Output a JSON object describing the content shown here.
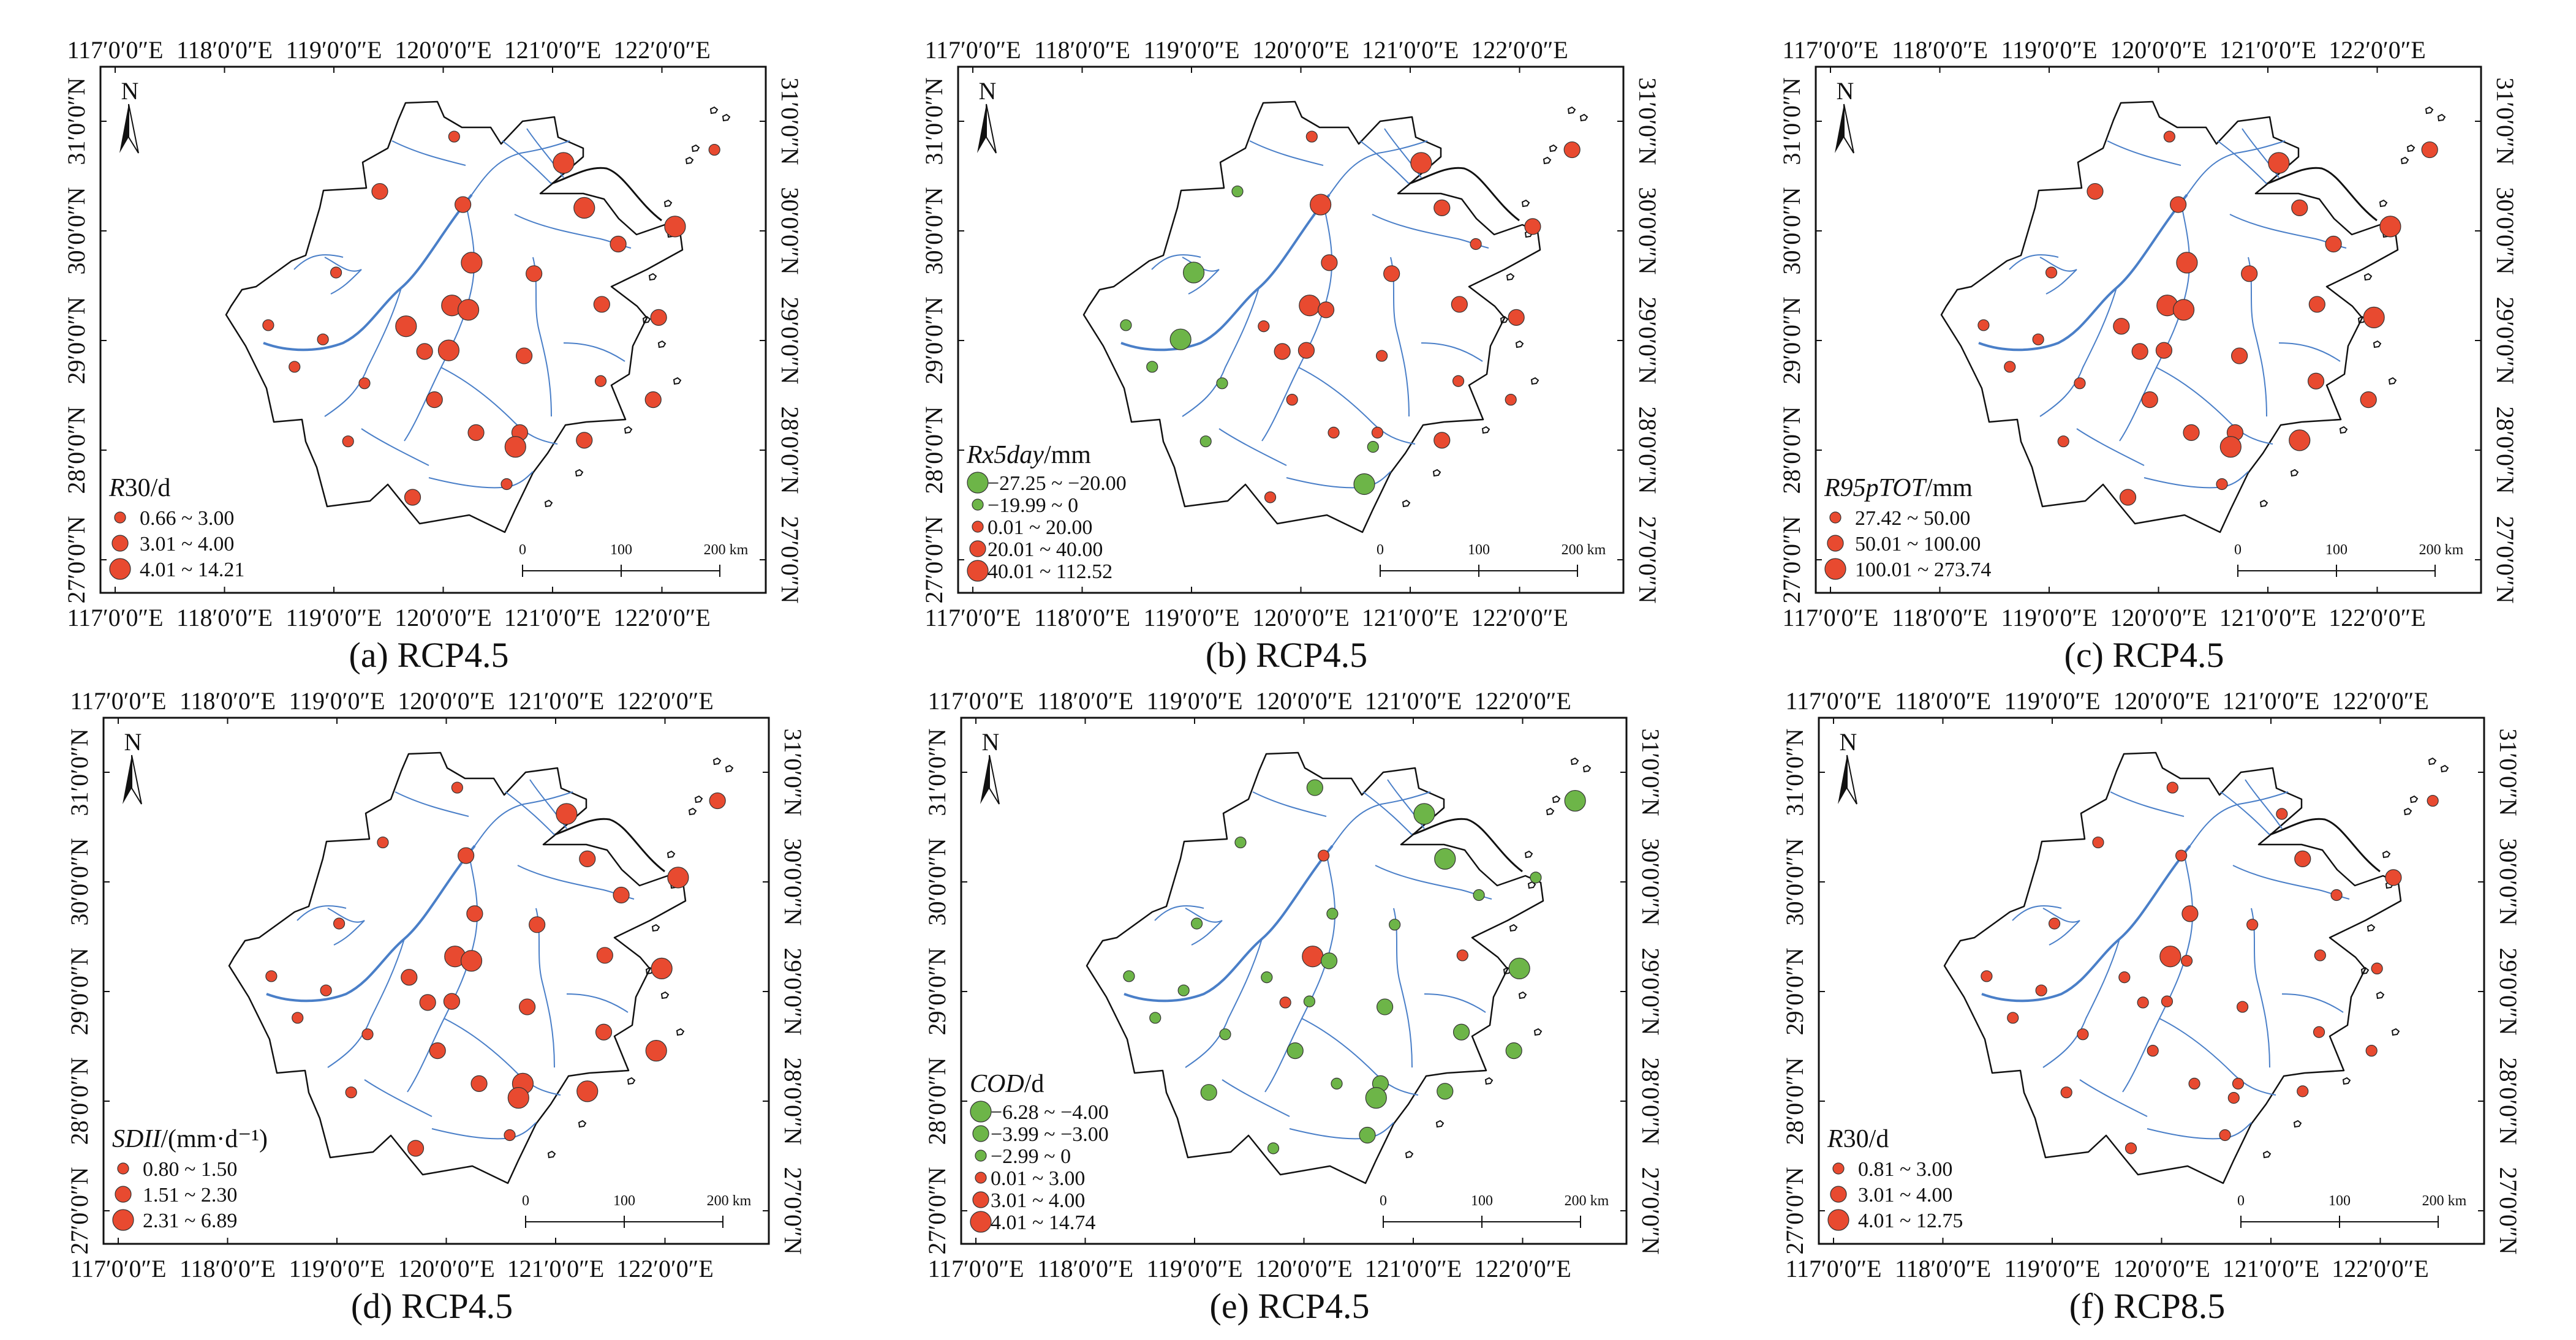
{
  "figure": {
    "axis_labels": {
      "lon_ticks": [
        "117′0′0″E",
        "118′0′0″E",
        "119′0′0″E",
        "120′0′0″E",
        "121′0′0″E",
        "122′0′0″E"
      ],
      "lat_ticks": [
        "31′0′0″N",
        "30′0′0″N",
        "29′0′0″N",
        "28′0′0″N",
        "27′0′0″N"
      ]
    },
    "north_label": "N",
    "scale_bar": {
      "labels": [
        "0",
        "100",
        "200 km"
      ]
    },
    "colors": {
      "red": "#e84a30",
      "green": "#6db548",
      "river": "#4a7fc8",
      "border": "#111111"
    }
  },
  "chart_data": [
    {
      "type": "scatter-map",
      "id": "a",
      "caption": "(a) RCP4.5",
      "legend_title": "R30/d",
      "legend_title_italic": "R",
      "legend_title_rest": "30/d",
      "classes": [
        {
          "label": "0.66 ~ 3.00",
          "color": "red",
          "size": "small"
        },
        {
          "label": "3.01 ~ 4.00",
          "color": "red",
          "size": "medium"
        },
        {
          "label": "4.01 ~ 14.21",
          "color": "red",
          "size": "large"
        }
      ],
      "station_class": [
        0,
        0,
        2,
        1,
        1,
        2,
        2,
        1,
        2,
        0,
        1,
        2,
        2,
        1,
        1,
        0,
        2,
        0,
        1,
        2,
        1,
        0,
        0,
        0,
        1,
        1,
        1,
        1,
        0,
        1,
        2,
        0,
        1
      ]
    },
    {
      "type": "scatter-map",
      "id": "b",
      "caption": "(b) RCP4.5",
      "legend_title": "Rx5day/mm",
      "legend_title_italic": "Rx5day",
      "legend_title_rest": "/mm",
      "classes": [
        {
          "label": "−27.25 ~ −20.00",
          "color": "green",
          "size": "large"
        },
        {
          "label": "−19.99 ~ 0",
          "color": "green",
          "size": "small"
        },
        {
          "label": "0.01 ~ 20.00",
          "color": "red",
          "size": "small"
        },
        {
          "label": "20.01 ~ 40.00",
          "color": "red",
          "size": "medium"
        },
        {
          "label": "40.01 ~ 112.52",
          "color": "red",
          "size": "large"
        }
      ],
      "station_class": [
        2,
        3,
        4,
        1,
        4,
        3,
        3,
        2,
        3,
        0,
        3,
        4,
        3,
        3,
        3,
        1,
        2,
        0,
        3,
        3,
        2,
        1,
        1,
        2,
        2,
        2,
        2,
        2,
        1,
        3,
        1,
        0,
        2
      ]
    },
    {
      "type": "scatter-map",
      "id": "c",
      "caption": "(c) RCP4.5",
      "legend_title": "R95pTOT/mm",
      "legend_title_italic": "R95pTOT",
      "legend_title_rest": "/mm",
      "classes": [
        {
          "label": "27.42 ~ 50.00",
          "color": "red",
          "size": "small"
        },
        {
          "label": "50.01 ~ 100.00",
          "color": "red",
          "size": "medium"
        },
        {
          "label": "100.01 ~ 273.74",
          "color": "red",
          "size": "large"
        }
      ],
      "station_class": [
        0,
        1,
        2,
        1,
        1,
        1,
        2,
        1,
        2,
        0,
        1,
        2,
        2,
        1,
        2,
        0,
        1,
        0,
        1,
        1,
        1,
        0,
        0,
        1,
        1,
        1,
        1,
        1,
        0,
        2,
        2,
        0,
        1
      ]
    },
    {
      "type": "scatter-map",
      "id": "d",
      "caption": "(d) RCP4.5",
      "legend_title": "SDII/(mm·d⁻¹)",
      "legend_title_italic": "SDII",
      "legend_title_rest": "/(mm·d⁻¹)",
      "classes": [
        {
          "label": "0.80 ~ 1.50",
          "color": "red",
          "size": "small"
        },
        {
          "label": "1.51 ~ 2.30",
          "color": "red",
          "size": "medium"
        },
        {
          "label": "2.31 ~ 6.89",
          "color": "red",
          "size": "large"
        }
      ],
      "station_class": [
        0,
        1,
        2,
        0,
        1,
        1,
        2,
        1,
        1,
        0,
        1,
        2,
        2,
        1,
        2,
        0,
        1,
        0,
        1,
        1,
        1,
        0,
        0,
        1,
        2,
        1,
        1,
        2,
        0,
        2,
        2,
        0,
        1
      ]
    },
    {
      "type": "scatter-map",
      "id": "e",
      "caption": "(e) RCP4.5",
      "legend_title": "COD/d",
      "legend_title_italic": "COD",
      "legend_title_rest": "/d",
      "classes": [
        {
          "label": "−6.28 ~ −4.00",
          "color": "green",
          "size": "large"
        },
        {
          "label": "−3.99 ~ −3.00",
          "color": "green",
          "size": "medium"
        },
        {
          "label": "−2.99 ~ 0",
          "color": "green",
          "size": "small"
        },
        {
          "label": "0.01 ~ 3.00",
          "color": "red",
          "size": "small"
        },
        {
          "label": "3.01 ~ 4.00",
          "color": "red",
          "size": "medium"
        },
        {
          "label": "4.01 ~ 14.74",
          "color": "red",
          "size": "large"
        }
      ],
      "station_class": [
        1,
        0,
        0,
        2,
        3,
        0,
        2,
        2,
        2,
        2,
        2,
        5,
        1,
        3,
        0,
        2,
        2,
        2,
        3,
        2,
        1,
        2,
        2,
        1,
        1,
        1,
        2,
        1,
        1,
        1,
        0,
        1,
        2
      ]
    },
    {
      "type": "scatter-map",
      "id": "f",
      "caption": "(f) RCP8.5",
      "legend_title": "R30/d",
      "legend_title_italic": "R",
      "legend_title_rest": "30/d",
      "classes": [
        {
          "label": "0.81 ~ 3.00",
          "color": "red",
          "size": "small"
        },
        {
          "label": "3.01 ~ 4.00",
          "color": "red",
          "size": "medium"
        },
        {
          "label": "4.01 ~ 12.75",
          "color": "red",
          "size": "large"
        }
      ],
      "station_class": [
        0,
        0,
        0,
        0,
        0,
        1,
        1,
        0,
        1,
        0,
        0,
        2,
        0,
        0,
        0,
        0,
        0,
        0,
        0,
        0,
        0,
        0,
        0,
        0,
        0,
        0,
        0,
        0,
        0,
        0,
        0,
        0,
        0
      ]
    }
  ],
  "stations": [
    {
      "lon": 120.1,
      "lat": 30.86
    },
    {
      "lon": 122.48,
      "lat": 30.74
    },
    {
      "lon": 121.1,
      "lat": 30.62
    },
    {
      "lon": 119.42,
      "lat": 30.36
    },
    {
      "lon": 120.18,
      "lat": 30.24
    },
    {
      "lon": 121.29,
      "lat": 30.21
    },
    {
      "lon": 122.12,
      "lat": 30.04
    },
    {
      "lon": 121.6,
      "lat": 29.88
    },
    {
      "lon": 120.26,
      "lat": 29.71
    },
    {
      "lon": 119.02,
      "lat": 29.62
    },
    {
      "lon": 120.83,
      "lat": 29.61
    },
    {
      "lon": 120.08,
      "lat": 29.32
    },
    {
      "lon": 120.23,
      "lat": 29.28
    },
    {
      "lon": 121.45,
      "lat": 29.33
    },
    {
      "lon": 121.97,
      "lat": 29.21
    },
    {
      "lon": 118.4,
      "lat": 29.14
    },
    {
      "lon": 119.66,
      "lat": 29.13
    },
    {
      "lon": 118.9,
      "lat": 29.01
    },
    {
      "lon": 119.83,
      "lat": 28.9
    },
    {
      "lon": 120.05,
      "lat": 28.91
    },
    {
      "lon": 120.74,
      "lat": 28.86
    },
    {
      "lon": 118.64,
      "lat": 28.76
    },
    {
      "lon": 119.28,
      "lat": 28.61
    },
    {
      "lon": 121.44,
      "lat": 28.63
    },
    {
      "lon": 121.92,
      "lat": 28.46
    },
    {
      "lon": 119.92,
      "lat": 28.46
    },
    {
      "lon": 120.3,
      "lat": 28.16
    },
    {
      "lon": 120.7,
      "lat": 28.16
    },
    {
      "lon": 119.13,
      "lat": 28.08
    },
    {
      "lon": 121.29,
      "lat": 28.09
    },
    {
      "lon": 120.66,
      "lat": 28.03
    },
    {
      "lon": 120.58,
      "lat": 27.69
    },
    {
      "lon": 119.72,
      "lat": 27.57
    }
  ]
}
